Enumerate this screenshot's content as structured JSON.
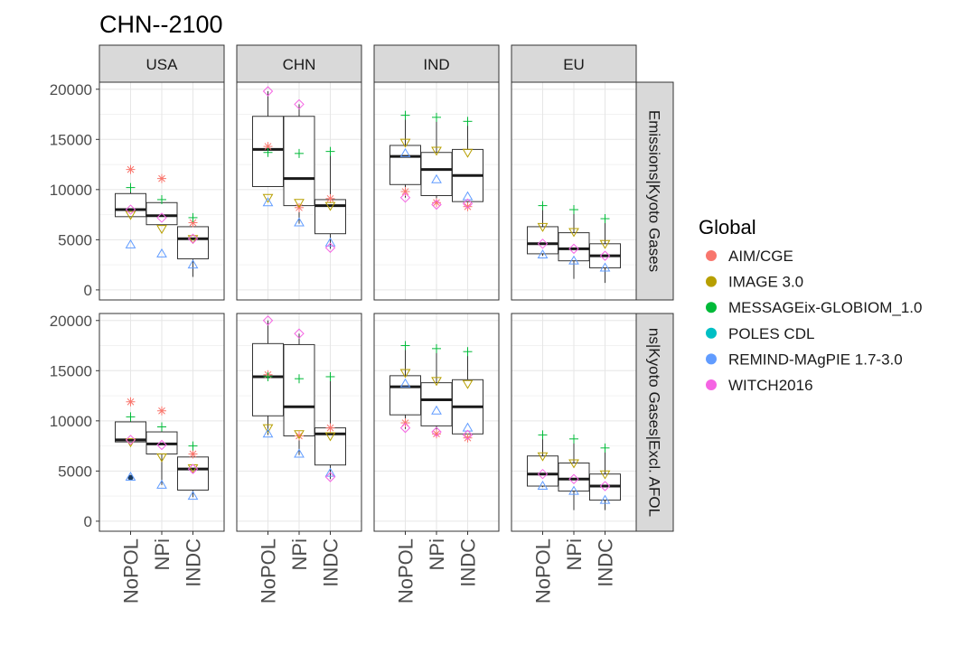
{
  "chart_data": {
    "type": "boxplot",
    "title": "CHN--2100",
    "column_facets": [
      "USA",
      "CHN",
      "IND",
      "EU"
    ],
    "row_facets": [
      "Emissions|Kyoto Gases",
      "Emissions|Kyoto Gases|Excl. AFOLU"
    ],
    "row_facet_display": [
      "Emissions|Kyoto Gases",
      "ns|Kyoto Gases|Excl. AFOL"
    ],
    "x_categories": [
      "NoPOL",
      "NPi",
      "INDC"
    ],
    "ylim": [
      -1000,
      20700
    ],
    "y_ticks": [
      0,
      5000,
      10000,
      15000,
      20000
    ],
    "y_tick_labels": [
      "0",
      "5000",
      "10000",
      "15000",
      "20000"
    ],
    "grid": true,
    "legend": {
      "title": "Global",
      "placement": "right",
      "entries": [
        "AIM/CGE",
        "IMAGE 3.0",
        "MESSAGEix-GLOBIOM_1.0",
        "POLES CDL",
        "REMIND-MAgPIE 1.7-3.0",
        "WITCH2016"
      ]
    },
    "model_colors": [
      "#F8766D",
      "#B79F00",
      "#00BA38",
      "#00BFC4",
      "#619CFF",
      "#F564E3"
    ],
    "model_markers": [
      "asterisk",
      "triangle-down",
      "plus",
      "circle",
      "triangle-up",
      "diamond"
    ],
    "outlier_color": "#1a3a5c",
    "panels": [
      {
        "row": 0,
        "col": 0,
        "boxes": [
          {
            "cat": "NoPOL",
            "whisker_low": 7300,
            "q1": 7300,
            "median": 8000,
            "q3": 9600,
            "whisker_high": 10000,
            "points": [
              12000,
              7500,
              10200,
              null,
              4500,
              8000
            ]
          },
          {
            "cat": "NPi",
            "whisker_low": 6500,
            "q1": 6500,
            "median": 7400,
            "q3": 8700,
            "whisker_high": 9100,
            "points": [
              11100,
              6100,
              9000,
              null,
              3600,
              7200
            ]
          },
          {
            "cat": "INDC",
            "whisker_low": 1300,
            "q1": 3100,
            "median": 5100,
            "q3": 6300,
            "whisker_high": 6800,
            "points": [
              6700,
              5100,
              7200,
              null,
              2500,
              5100
            ]
          }
        ]
      },
      {
        "row": 0,
        "col": 1,
        "boxes": [
          {
            "cat": "NoPOL",
            "whisker_low": 10300,
            "q1": 10300,
            "median": 14000,
            "q3": 17300,
            "whisker_high": 19800,
            "points": [
              14300,
              9200,
              13700,
              null,
              8700,
              19800
            ]
          },
          {
            "cat": "NPi",
            "whisker_low": 6600,
            "q1": 8400,
            "median": 11100,
            "q3": 17300,
            "whisker_high": 18500,
            "points": [
              8200,
              8700,
              13600,
              null,
              6700,
              18500
            ]
          },
          {
            "cat": "INDC",
            "whisker_low": 4100,
            "q1": 5600,
            "median": 8400,
            "q3": 9000,
            "whisker_high": 13800,
            "points": [
              9100,
              8400,
              13800,
              null,
              4700,
              4200
            ]
          }
        ]
      },
      {
        "row": 0,
        "col": 2,
        "boxes": [
          {
            "cat": "NoPOL",
            "whisker_low": 9200,
            "q1": 10500,
            "median": 13300,
            "q3": 14400,
            "whisker_high": 17400,
            "points": [
              9800,
              14700,
              17400,
              null,
              13600,
              9200
            ]
          },
          {
            "cat": "NPi",
            "whisker_low": 8500,
            "q1": 9400,
            "median": 12000,
            "q3": 13700,
            "whisker_high": 17200,
            "points": [
              8700,
              13900,
              17200,
              null,
              11000,
              8500
            ]
          },
          {
            "cat": "INDC",
            "whisker_low": 8300,
            "q1": 8800,
            "median": 11400,
            "q3": 14000,
            "whisker_high": 16800,
            "points": [
              8300,
              13700,
              16800,
              null,
              9300,
              8600
            ]
          }
        ]
      },
      {
        "row": 0,
        "col": 3,
        "boxes": [
          {
            "cat": "NoPOL",
            "whisker_low": 3400,
            "q1": 3600,
            "median": 4600,
            "q3": 6300,
            "whisker_high": 8400,
            "points": [
              null,
              6300,
              8400,
              null,
              3500,
              4600
            ]
          },
          {
            "cat": "NPi",
            "whisker_low": 1100,
            "q1": 2900,
            "median": 4100,
            "q3": 5700,
            "whisker_high": 8000,
            "points": [
              null,
              5800,
              8000,
              null,
              2900,
              4100
            ]
          },
          {
            "cat": "INDC",
            "whisker_low": 700,
            "q1": 2200,
            "median": 3400,
            "q3": 4600,
            "whisker_high": 7100,
            "points": [
              null,
              4600,
              7100,
              null,
              2200,
              3400
            ]
          }
        ]
      },
      {
        "row": 1,
        "col": 0,
        "boxes": [
          {
            "cat": "NoPOL",
            "whisker_low": 7900,
            "q1": 7900,
            "median": 8100,
            "q3": 9900,
            "whisker_high": 10300,
            "points": [
              11900,
              7900,
              10400,
              null,
              4400,
              8100
            ],
            "outliers": [
              4350
            ]
          },
          {
            "cat": "NPi",
            "whisker_low": 3600,
            "q1": 6700,
            "median": 7700,
            "q3": 8900,
            "whisker_high": 9400,
            "points": [
              11000,
              6400,
              9400,
              null,
              3600,
              7600
            ]
          },
          {
            "cat": "INDC",
            "whisker_low": 2400,
            "q1": 3100,
            "median": 5200,
            "q3": 6400,
            "whisker_high": 7400,
            "points": [
              6700,
              5300,
              7500,
              null,
              2500,
              5200
            ]
          }
        ]
      },
      {
        "row": 1,
        "col": 1,
        "boxes": [
          {
            "cat": "NoPOL",
            "whisker_low": 8600,
            "q1": 10500,
            "median": 14400,
            "q3": 17700,
            "whisker_high": 20000,
            "points": [
              14600,
              9300,
              14400,
              null,
              8700,
              20000
            ]
          },
          {
            "cat": "NPi",
            "whisker_low": 6600,
            "q1": 8500,
            "median": 11400,
            "q3": 17600,
            "whisker_high": 18700,
            "points": [
              8500,
              8700,
              14200,
              null,
              6700,
              18700
            ]
          },
          {
            "cat": "INDC",
            "whisker_low": 4200,
            "q1": 5600,
            "median": 8700,
            "q3": 9300,
            "whisker_high": 14400,
            "points": [
              9300,
              8500,
              14400,
              null,
              4800,
              4400
            ]
          }
        ]
      },
      {
        "row": 1,
        "col": 2,
        "boxes": [
          {
            "cat": "NoPOL",
            "whisker_low": 9200,
            "q1": 10600,
            "median": 13400,
            "q3": 14500,
            "whisker_high": 17500,
            "points": [
              9800,
              14800,
              17500,
              null,
              13700,
              9300
            ]
          },
          {
            "cat": "NPi",
            "whisker_low": 8600,
            "q1": 9500,
            "median": 12100,
            "q3": 13800,
            "whisker_high": 17200,
            "points": [
              8700,
              14000,
              17200,
              null,
              11000,
              8900
            ]
          },
          {
            "cat": "INDC",
            "whisker_low": 8300,
            "q1": 8700,
            "median": 11400,
            "q3": 14100,
            "whisker_high": 16900,
            "points": [
              8300,
              13700,
              16900,
              null,
              9300,
              8600
            ]
          }
        ]
      },
      {
        "row": 1,
        "col": 3,
        "boxes": [
          {
            "cat": "NoPOL",
            "whisker_low": 3400,
            "q1": 3500,
            "median": 4700,
            "q3": 6500,
            "whisker_high": 8600,
            "points": [
              null,
              6500,
              8600,
              null,
              3500,
              4700
            ]
          },
          {
            "cat": "NPi",
            "whisker_low": 1100,
            "q1": 3000,
            "median": 4200,
            "q3": 5800,
            "whisker_high": 8200,
            "points": [
              null,
              5800,
              8200,
              null,
              3000,
              4200
            ]
          },
          {
            "cat": "INDC",
            "whisker_low": 1100,
            "q1": 2100,
            "median": 3500,
            "q3": 4700,
            "whisker_high": 7300,
            "points": [
              null,
              4700,
              7300,
              null,
              2100,
              3500
            ]
          }
        ]
      }
    ]
  }
}
